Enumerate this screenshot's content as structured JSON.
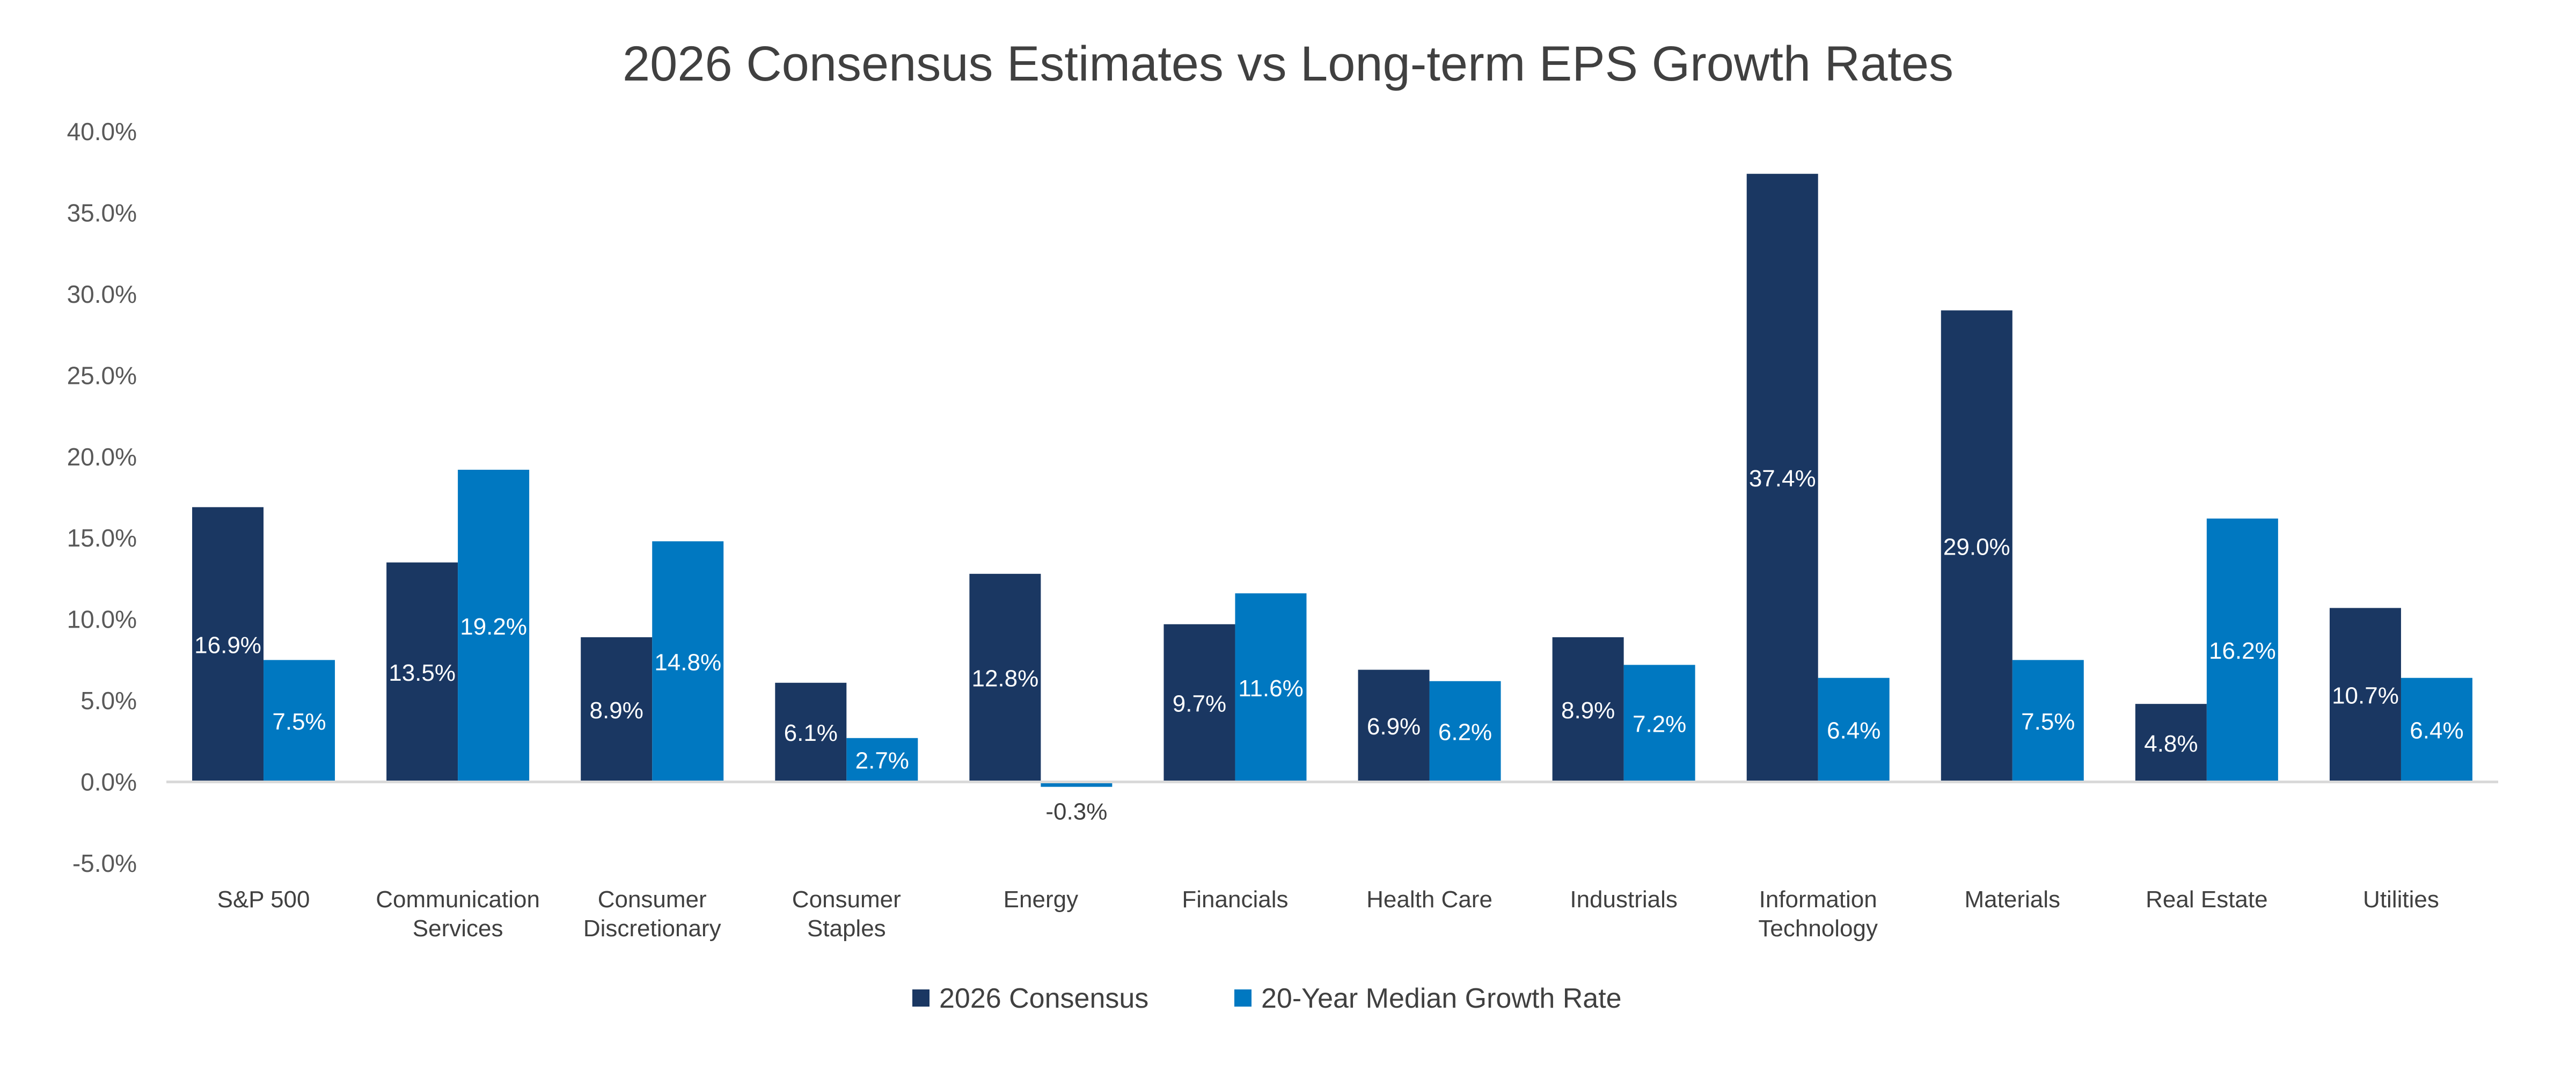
{
  "chart_data": {
    "type": "bar",
    "title": "2026 Consensus Estimates vs Long-term EPS Growth Rates",
    "xlabel": "",
    "ylabel": "",
    "ylim": [
      -5,
      40
    ],
    "yticks": [
      "-5.0%",
      "0.0%",
      "5.0%",
      "10.0%",
      "15.0%",
      "20.0%",
      "25.0%",
      "30.0%",
      "35.0%",
      "40.0%"
    ],
    "grid": false,
    "legend_position": "bottom",
    "categories": [
      [
        "S&P 500"
      ],
      [
        "Communication",
        "Services"
      ],
      [
        "Consumer",
        "Discretionary"
      ],
      [
        "Consumer",
        "Staples"
      ],
      [
        "Energy"
      ],
      [
        "Financials"
      ],
      [
        "Health Care"
      ],
      [
        "Industrials"
      ],
      [
        "Information",
        "Technology"
      ],
      [
        "Materials"
      ],
      [
        "Real Estate"
      ],
      [
        "Utilities"
      ]
    ],
    "series": [
      {
        "name": "2026 Consensus",
        "color": "#1a3762",
        "values": [
          16.9,
          13.5,
          8.9,
          6.1,
          12.8,
          9.7,
          6.9,
          8.9,
          37.4,
          29.0,
          4.8,
          10.7
        ],
        "labels": [
          "16.9%",
          "13.5%",
          "8.9%",
          "6.1%",
          "12.8%",
          "9.7%",
          "6.9%",
          "8.9%",
          "37.4%",
          "29.0%",
          "4.8%",
          "10.7%"
        ]
      },
      {
        "name": "20-Year Median Growth Rate",
        "color": "#0078c1",
        "values": [
          7.5,
          19.2,
          14.8,
          2.7,
          -0.3,
          11.6,
          6.2,
          7.2,
          6.4,
          7.5,
          16.2,
          6.4
        ],
        "labels": [
          "7.5%",
          "19.2%",
          "14.8%",
          "2.7%",
          "-0.3%",
          "11.6%",
          "6.2%",
          "7.2%",
          "6.4%",
          "7.5%",
          "16.2%",
          "6.4%"
        ]
      }
    ]
  }
}
